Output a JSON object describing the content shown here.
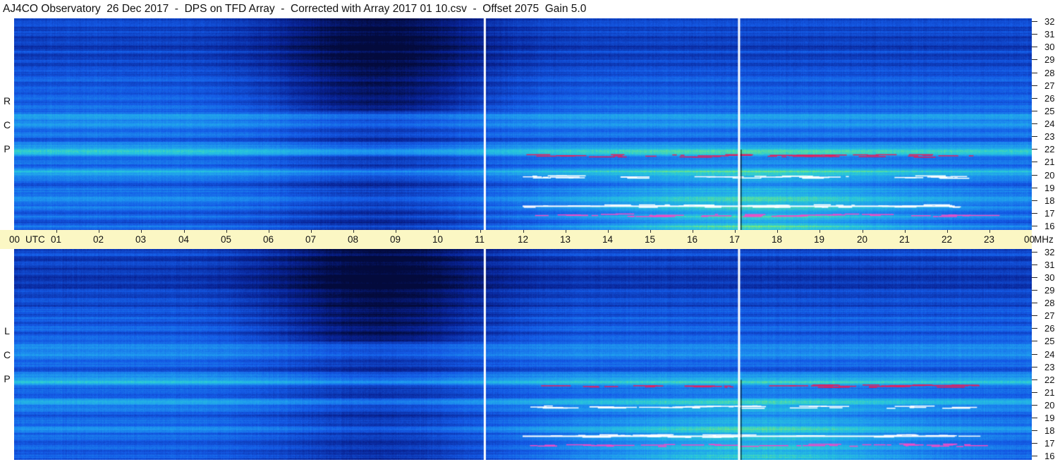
{
  "title": "AJ4CO Observatory  26 Dec 2017  -  DPS on TFD Array  -  Corrected with Array 2017 01 10.csv  -  Offset 2075  Gain 5.0",
  "panels": [
    {
      "id": "rcp",
      "label": [
        "R",
        "C",
        "P"
      ]
    },
    {
      "id": "lcp",
      "label": [
        "L",
        "C",
        "P"
      ]
    }
  ],
  "time_axis": {
    "start_label": "00",
    "utc_label": "UTC",
    "hours": [
      "01",
      "02",
      "03",
      "04",
      "05",
      "06",
      "07",
      "08",
      "09",
      "10",
      "11",
      "12",
      "13",
      "14",
      "15",
      "16",
      "17",
      "18",
      "19",
      "20",
      "21",
      "22",
      "23"
    ],
    "end_label": "00",
    "unit_label": "MHz"
  },
  "freq_axis": {
    "labels": [
      "32",
      "31",
      "30",
      "29",
      "28",
      "27",
      "26",
      "25",
      "24",
      "23",
      "22",
      "21",
      "20",
      "19",
      "18",
      "17",
      "16"
    ],
    "min_mhz": 16,
    "max_mhz": 32
  },
  "colors": {
    "axis_bg": "#fbf7c4",
    "side_bg": "#fcd8bd",
    "spectrogram_dark": "#05124a",
    "spectrogram_mid": "#1a6fe6",
    "spectrogram_bright": "#7ef07a"
  },
  "markers": {
    "vertical_lines_utc": [
      11.1,
      17.1
    ]
  }
}
